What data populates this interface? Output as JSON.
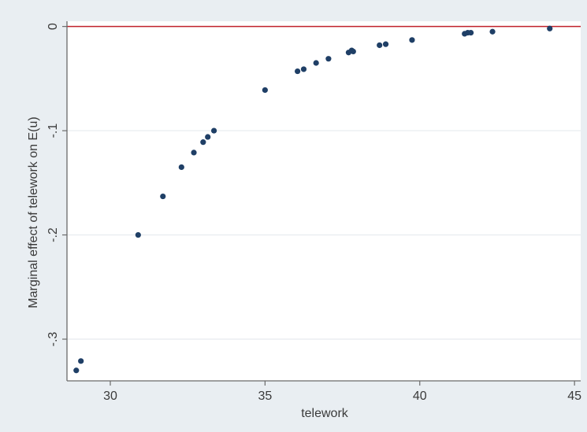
{
  "chart_data": {
    "type": "scatter",
    "title": "",
    "xlabel": "telework",
    "ylabel": "Marginal effect of telework on E(u)",
    "xlim": [
      28.6,
      45.2
    ],
    "ylim": [
      -0.34,
      0.005
    ],
    "xticks": [
      30,
      35,
      40,
      45
    ],
    "xtick_labels": [
      "30",
      "35",
      "40",
      "45"
    ],
    "yticks": [
      0,
      -0.1,
      -0.2,
      -0.3
    ],
    "ytick_labels": [
      "0",
      "-.1",
      "-.2",
      "-.3"
    ],
    "grid": "horizontal",
    "reference_line": {
      "y": 0,
      "color": "#c0202a"
    },
    "series": [
      {
        "color": "#1f3f66",
        "x": [
          28.9,
          29.05,
          30.9,
          31.7,
          32.3,
          32.7,
          33.0,
          33.15,
          33.35,
          35.0,
          36.05,
          36.25,
          36.65,
          37.05,
          37.7,
          37.8,
          37.85,
          38.7,
          38.9,
          39.75,
          41.45,
          41.55,
          41.65,
          42.35,
          44.2
        ],
        "y": [
          -0.33,
          -0.321,
          -0.2,
          -0.163,
          -0.135,
          -0.121,
          -0.111,
          -0.106,
          -0.1,
          -0.061,
          -0.043,
          -0.041,
          -0.035,
          -0.031,
          -0.025,
          -0.023,
          -0.024,
          -0.018,
          -0.017,
          -0.013,
          -0.007,
          -0.006,
          -0.006,
          -0.005,
          -0.002
        ]
      }
    ]
  }
}
